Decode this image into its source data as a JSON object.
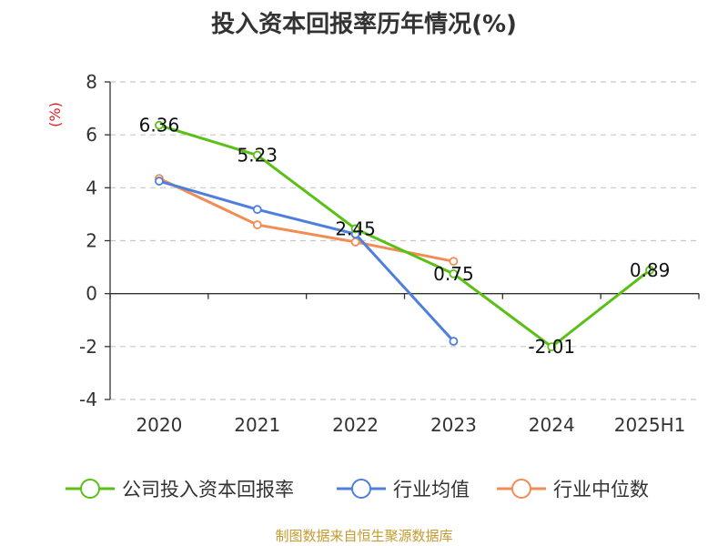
{
  "chart_data": {
    "type": "line",
    "title": "投入资本回报率历年情况(%)",
    "ylabel": "(%)",
    "ylim": [
      -4,
      8
    ],
    "yticks": [
      -4,
      -2,
      0,
      2,
      4,
      6,
      8
    ],
    "categories": [
      "2020",
      "2021",
      "2022",
      "2023",
      "2024",
      "2025H1"
    ],
    "grid": true,
    "legend_position": "bottom",
    "series": [
      {
        "name": "公司投入资本回报率",
        "color": "#5ac018",
        "values": [
          6.36,
          5.23,
          2.45,
          0.75,
          -2.01,
          0.89
        ],
        "labels": [
          "6.36",
          "5.23",
          "2.45",
          "0.75",
          "-2.01",
          "0.89"
        ]
      },
      {
        "name": "行业均值",
        "color": "#4f7fdc",
        "values": [
          4.25,
          3.18,
          2.25,
          -1.8,
          null,
          null
        ]
      },
      {
        "name": "行业中位数",
        "color": "#f28c55",
        "values": [
          4.35,
          2.6,
          1.95,
          1.22,
          null,
          null
        ]
      }
    ]
  },
  "source": "制图数据来自恒生聚源数据库"
}
